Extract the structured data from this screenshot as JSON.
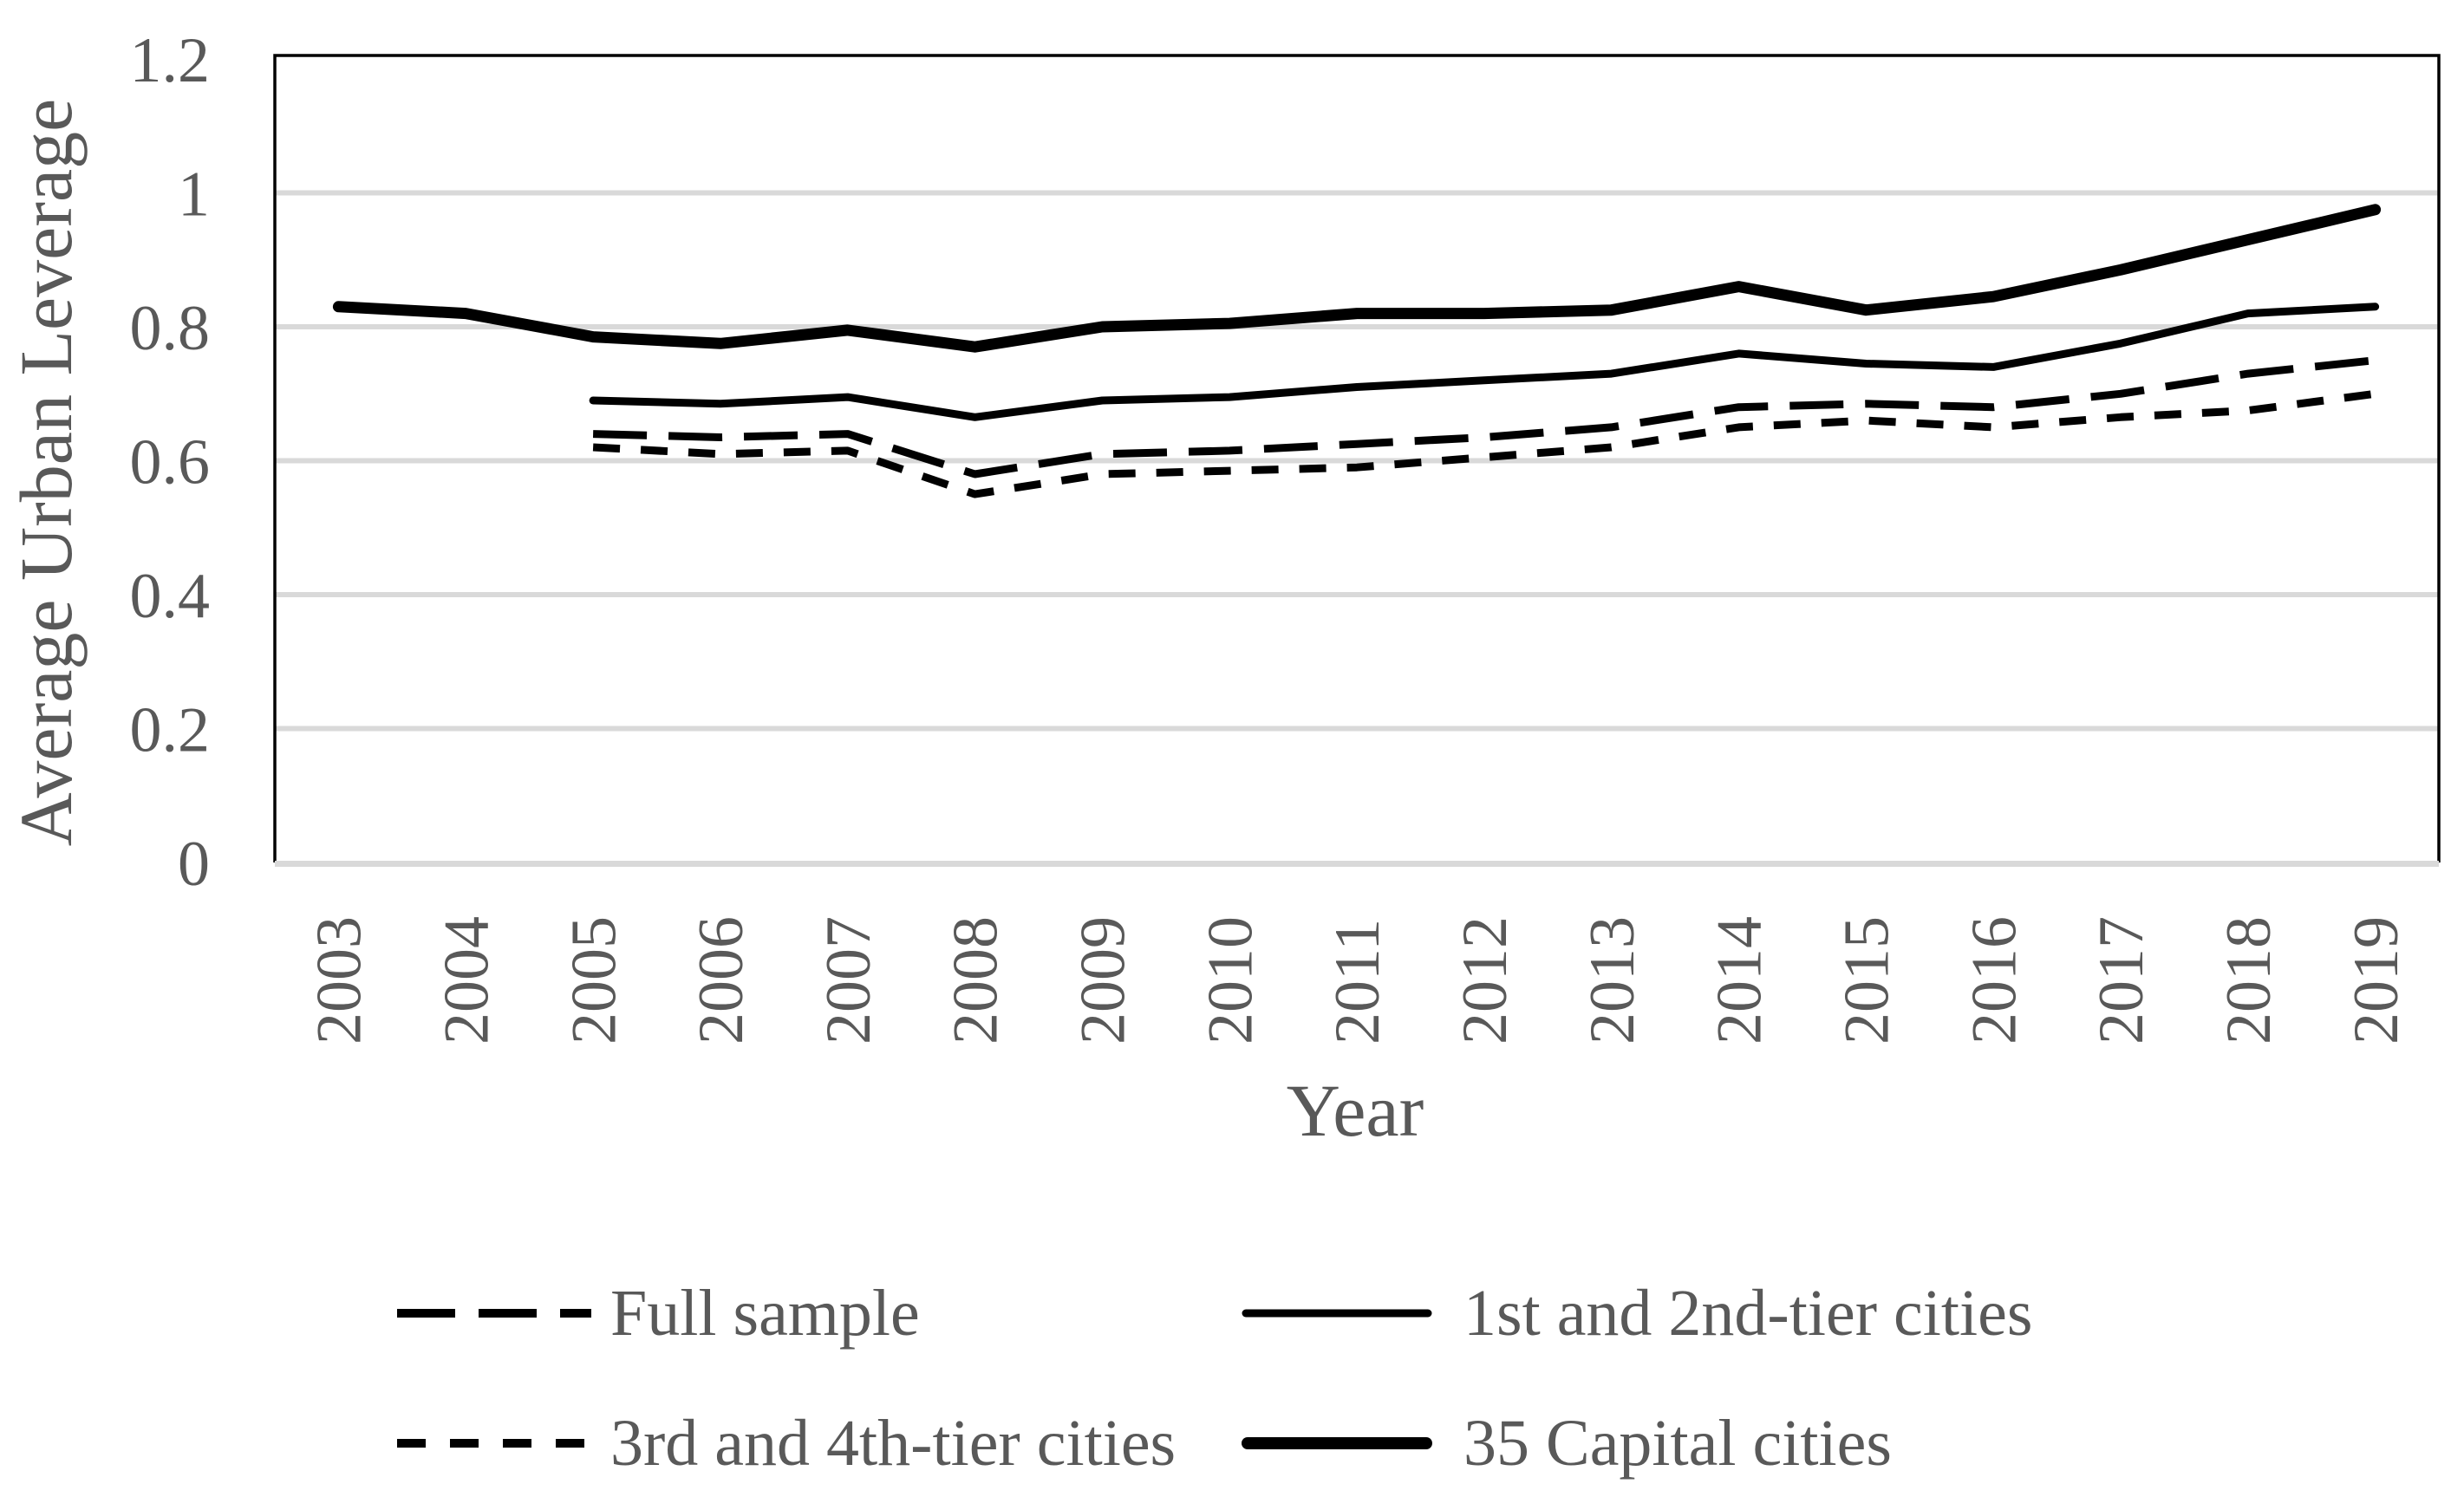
{
  "style": {
    "text_color": "#595959",
    "grid_color": "#d9d9d9",
    "series_color": "#000000",
    "background": "#ffffff"
  },
  "chart_data": {
    "type": "line",
    "title": "",
    "xlabel": "Year",
    "ylabel": "Average Urban Leverage",
    "x": [
      2003,
      2004,
      2005,
      2006,
      2007,
      2008,
      2009,
      2010,
      2011,
      2012,
      2013,
      2014,
      2015,
      2016,
      2017,
      2018,
      2019
    ],
    "ylim": [
      0,
      1.2
    ],
    "grid": true,
    "gridline_values": [
      0.2,
      0.4,
      0.6,
      0.8,
      1.0
    ],
    "y_ticks": [
      {
        "label": "0",
        "value": 0
      },
      {
        "label": "0.2",
        "value": 0.2
      },
      {
        "label": "0.4",
        "value": 0.4
      },
      {
        "label": "0.6",
        "value": 0.6
      },
      {
        "label": "0.8",
        "value": 0.8
      },
      {
        "label": "1",
        "value": 1.0
      },
      {
        "label": "1.2",
        "value": 1.2
      }
    ],
    "legend_position": "bottom, two columns",
    "series": [
      {
        "name": "Full sample",
        "dash": "long",
        "stroke_width": 9,
        "values": [
          null,
          null,
          0.64,
          0.635,
          0.64,
          0.58,
          0.61,
          0.615,
          0.625,
          0.635,
          0.65,
          0.68,
          0.685,
          0.68,
          0.7,
          0.73,
          0.75
        ]
      },
      {
        "name": "1st and 2nd-tier cities",
        "dash": "none",
        "stroke_width": 9,
        "values": [
          null,
          null,
          0.69,
          0.685,
          0.695,
          0.665,
          0.69,
          0.695,
          0.71,
          0.72,
          0.73,
          0.76,
          0.745,
          0.74,
          0.775,
          0.82,
          0.83
        ]
      },
      {
        "name": "3rd and 4th-tier cities",
        "dash": "short",
        "stroke_width": 9,
        "values": [
          null,
          null,
          0.62,
          0.61,
          0.615,
          0.55,
          0.58,
          0.585,
          0.59,
          0.605,
          0.62,
          0.65,
          0.66,
          0.65,
          0.665,
          0.675,
          0.7
        ]
      },
      {
        "name": "35 Capital cities",
        "dash": "none",
        "stroke_width": 13,
        "values": [
          0.83,
          0.82,
          0.785,
          0.775,
          0.795,
          0.77,
          0.8,
          0.805,
          0.82,
          0.82,
          0.825,
          0.86,
          0.825,
          0.845,
          0.885,
          0.93,
          0.975
        ]
      }
    ]
  },
  "legend": {
    "items": [
      {
        "label": "Full sample",
        "swatch": "long-dash-line"
      },
      {
        "label": "1st and 2nd-tier cities",
        "swatch": "thin-solid-line"
      },
      {
        "label": "3rd and 4th-tier cities",
        "swatch": "short-dash-line"
      },
      {
        "label": "35 Capital cities",
        "swatch": "thick-solid-line"
      }
    ]
  }
}
